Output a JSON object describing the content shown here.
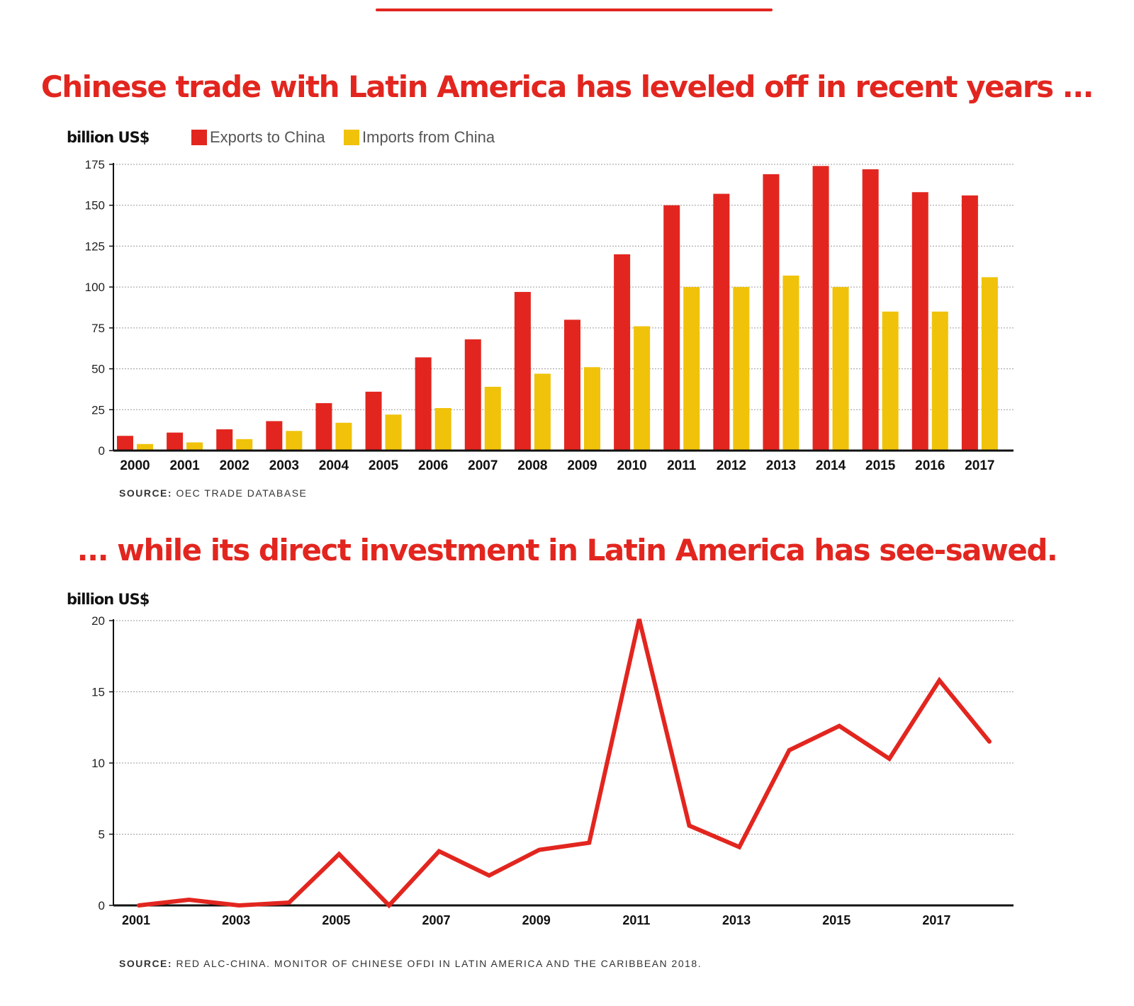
{
  "colors": {
    "exports": "#e2261f",
    "imports": "#f0c20a",
    "line": "#e2261f",
    "grid": "#9a9a9a",
    "axis": "#111111"
  },
  "chart_data": [
    {
      "type": "bar",
      "title": "Chinese trade with Latin America has leveled off in recent years ...",
      "ylabel": "billion US$",
      "ylim": [
        0,
        175
      ],
      "yticks": [
        0,
        25,
        50,
        75,
        100,
        125,
        150,
        175
      ],
      "grid": true,
      "legend": "top-left",
      "categories": [
        "2000",
        "2001",
        "2002",
        "2003",
        "2004",
        "2005",
        "2006",
        "2007",
        "2008",
        "2009",
        "2010",
        "2011",
        "2012",
        "2013",
        "2014",
        "2015",
        "2016",
        "2017"
      ],
      "series": [
        {
          "name": "Exports to China",
          "color": "#e2261f",
          "values": [
            9,
            11,
            13,
            18,
            29,
            36,
            57,
            68,
            97,
            80,
            120,
            150,
            157,
            169,
            174,
            172,
            158,
            156
          ]
        },
        {
          "name": "Imports from China",
          "color": "#f0c20a",
          "values": [
            4,
            5,
            7,
            12,
            17,
            22,
            26,
            39,
            47,
            51,
            76,
            100,
            100,
            107,
            100,
            85,
            85,
            106
          ]
        }
      ],
      "source_label": "SOURCE:",
      "source_text": " OEC TRADE DATABASE"
    },
    {
      "type": "line",
      "title": "... while its direct investment in Latin America has see-sawed.",
      "ylabel": "billion US$",
      "ylim": [
        0,
        20
      ],
      "yticks": [
        0,
        5,
        10,
        15,
        20
      ],
      "grid": true,
      "x": [
        2001,
        2002,
        2003,
        2004,
        2005,
        2006,
        2007,
        2008,
        2009,
        2010,
        2011,
        2012,
        2013,
        2014,
        2015,
        2016,
        2017,
        2018
      ],
      "xticks": [
        "2001",
        "2003",
        "2005",
        "2007",
        "2009",
        "2011",
        "2013",
        "2015",
        "2017"
      ],
      "series": [
        {
          "name": "",
          "color": "#e2261f",
          "values": [
            0,
            0.4,
            0,
            0.2,
            3.6,
            0,
            3.8,
            2.1,
            3.9,
            4.4,
            20.1,
            5.6,
            4.1,
            10.9,
            12.6,
            10.3,
            15.8,
            11.5
          ]
        }
      ],
      "source_label": "SOURCE:",
      "source_text": " RED ALC-CHINA. MONITOR OF CHINESE OFDI IN LATIN AMERICA AND THE CARIBBEAN 2018."
    }
  ]
}
